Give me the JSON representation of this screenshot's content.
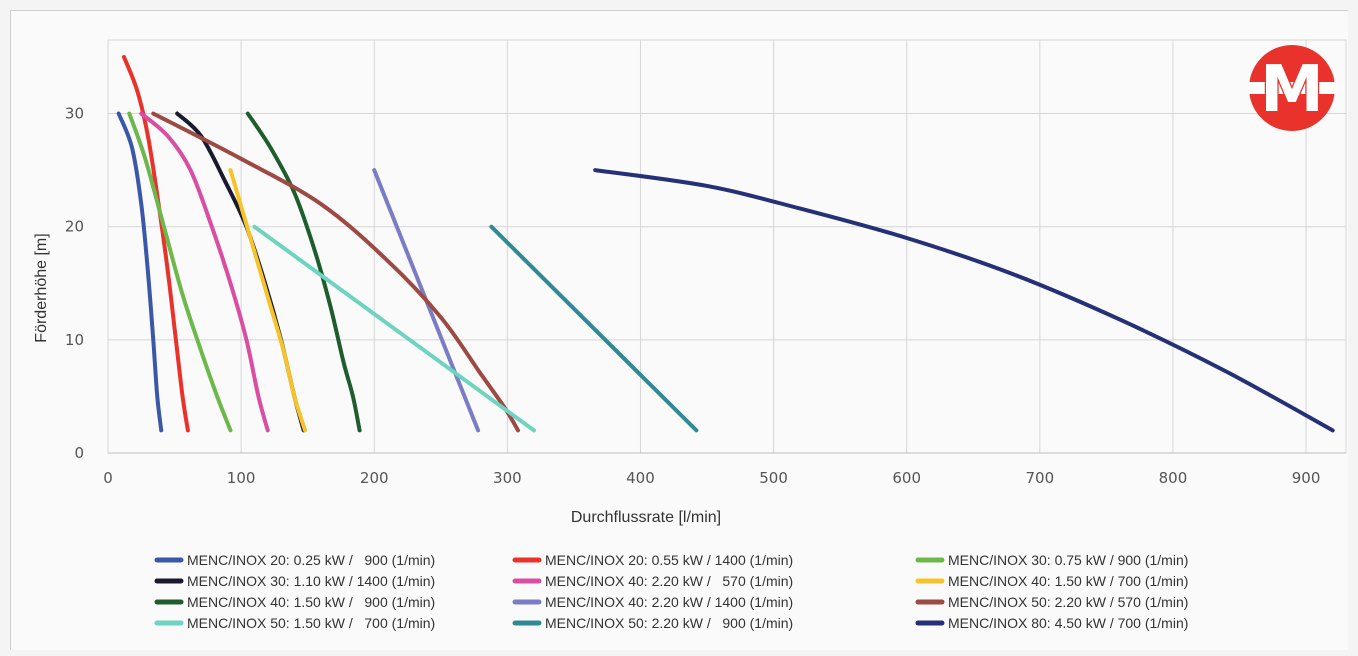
{
  "chart_data": {
    "type": "line",
    "title": "",
    "xlabel": "Durchflussrate [l/min]",
    "ylabel": "Förderhöhe [m]",
    "xlim": [
      0,
      920
    ],
    "ylim": [
      0,
      35
    ],
    "x_ticks": [
      "0",
      "100",
      "200",
      "300",
      "400",
      "500",
      "600",
      "700",
      "800",
      "900"
    ],
    "y_ticks": [
      "0",
      "10",
      "20",
      "30"
    ],
    "grid": true,
    "legend_position": "bottom",
    "logo_text": "M",
    "series": [
      {
        "name": "MENC/INOX 20: 0.25 kW /   900 (1/min)",
        "color": "#3a58a8",
        "points": [
          [
            8,
            30
          ],
          [
            18,
            27
          ],
          [
            25,
            22
          ],
          [
            30,
            16
          ],
          [
            34,
            10
          ],
          [
            37,
            5
          ],
          [
            40,
            2
          ]
        ]
      },
      {
        "name": "MENC/INOX 20: 0.55 kW / 1400 (1/min)",
        "color": "#e8322b",
        "points": [
          [
            12,
            35
          ],
          [
            22,
            32
          ],
          [
            30,
            28
          ],
          [
            38,
            22
          ],
          [
            45,
            16
          ],
          [
            51,
            10
          ],
          [
            56,
            5
          ],
          [
            60,
            2
          ]
        ]
      },
      {
        "name": "MENC/INOX 30: 0.75 kW / 900 (1/min)",
        "color": "#6db84a",
        "points": [
          [
            16,
            30
          ],
          [
            28,
            26
          ],
          [
            42,
            20
          ],
          [
            56,
            14
          ],
          [
            70,
            9
          ],
          [
            82,
            5
          ],
          [
            92,
            2
          ]
        ]
      },
      {
        "name": "MENC/INOX 30: 1.10 kW / 1400 (1/min)",
        "color": "#1a1a2e",
        "points": [
          [
            52,
            30
          ],
          [
            70,
            28
          ],
          [
            88,
            24
          ],
          [
            104,
            20
          ],
          [
            118,
            15
          ],
          [
            130,
            10
          ],
          [
            140,
            5
          ],
          [
            147,
            2
          ]
        ]
      },
      {
        "name": "MENC/INOX 40: 2.20 kW /   570 (1/min)",
        "color": "#d94ea2",
        "points": [
          [
            25,
            30
          ],
          [
            45,
            28
          ],
          [
            62,
            25
          ],
          [
            78,
            20
          ],
          [
            92,
            15
          ],
          [
            104,
            10
          ],
          [
            113,
            5
          ],
          [
            120,
            2
          ]
        ]
      },
      {
        "name": "MENC/INOX 40: 1.50 kW / 700 (1/min)",
        "color": "#f6c42a",
        "points": [
          [
            92,
            25
          ],
          [
            102,
            21
          ],
          [
            112,
            17
          ],
          [
            122,
            13
          ],
          [
            132,
            9
          ],
          [
            140,
            5
          ],
          [
            148,
            2
          ]
        ]
      },
      {
        "name": "MENC/INOX 40: 1.50 kW /   900 (1/min)",
        "color": "#1e5e2e",
        "points": [
          [
            105,
            30
          ],
          [
            122,
            27
          ],
          [
            140,
            23
          ],
          [
            155,
            18
          ],
          [
            167,
            13
          ],
          [
            177,
            8
          ],
          [
            184,
            5
          ],
          [
            189,
            2
          ]
        ]
      },
      {
        "name": "MENC/INOX 40: 2.20 kW / 1400 (1/min)",
        "color": "#7a7cc4",
        "points": [
          [
            200,
            25
          ],
          [
            278,
            2
          ]
        ]
      },
      {
        "name": "MENC/INOX 50: 2.20 kW / 570 (1/min)",
        "color": "#9e4a44",
        "points": [
          [
            34,
            30
          ],
          [
            100,
            26
          ],
          [
            160,
            22
          ],
          [
            210,
            17
          ],
          [
            250,
            12
          ],
          [
            280,
            7
          ],
          [
            298,
            4
          ],
          [
            308,
            2
          ]
        ]
      },
      {
        "name": "MENC/INOX 50: 1.50 kW /   700 (1/min)",
        "color": "#6fd3c1",
        "points": [
          [
            110,
            20
          ],
          [
            320,
            2
          ]
        ]
      },
      {
        "name": "MENC/INOX 50: 2.20 kW /   900 (1/min)",
        "color": "#2f8a96",
        "points": [
          [
            288,
            20
          ],
          [
            442,
            2
          ]
        ]
      },
      {
        "name": "MENC/INOX 80: 4.50 kW / 700 (1/min)",
        "color": "#263076",
        "points": [
          [
            366,
            25
          ],
          [
            450,
            23.6
          ],
          [
            520,
            21.6
          ],
          [
            600,
            19
          ],
          [
            680,
            15.8
          ],
          [
            760,
            11.8
          ],
          [
            840,
            7.2
          ],
          [
            920,
            2
          ]
        ]
      }
    ]
  }
}
